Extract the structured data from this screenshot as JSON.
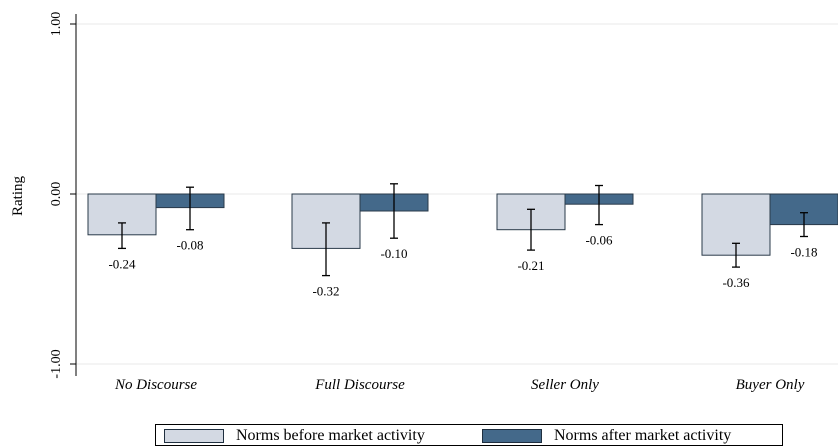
{
  "chart_data": {
    "type": "bar",
    "title": "",
    "xlabel": "",
    "ylabel": "Rating",
    "ylim": [
      -1,
      1
    ],
    "yticks": [
      {
        "value": -1,
        "label": "-1.00"
      },
      {
        "value": 0,
        "label": "0.00"
      },
      {
        "value": 1,
        "label": "1.00"
      }
    ],
    "categories": [
      "No Discourse",
      "Full Discourse",
      "Seller Only",
      "Buyer Only"
    ],
    "series": [
      {
        "name": "Norms before market activity",
        "color": "#d3d9e3",
        "values": [
          -0.24,
          -0.32,
          -0.21,
          -0.36
        ],
        "labels": [
          "-0.24",
          "-0.32",
          "-0.21",
          "-0.36"
        ],
        "ci_low": [
          -0.32,
          -0.48,
          -0.33,
          -0.43
        ],
        "ci_high": [
          -0.17,
          -0.17,
          -0.09,
          -0.29
        ]
      },
      {
        "name": "Norms after market activity",
        "color": "#44698a",
        "values": [
          -0.08,
          -0.1,
          -0.06,
          -0.18
        ],
        "labels": [
          "-0.08",
          "-0.10",
          "-0.06",
          "-0.18"
        ],
        "ci_low": [
          -0.21,
          -0.26,
          -0.18,
          -0.25
        ],
        "ci_high": [
          0.04,
          0.06,
          0.05,
          -0.11
        ]
      }
    ],
    "grid": true,
    "legend_position": "bottom"
  }
}
